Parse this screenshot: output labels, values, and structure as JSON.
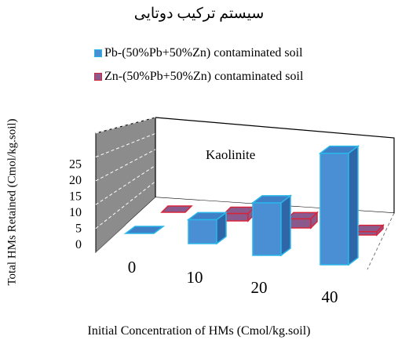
{
  "title": "سیستم ترکیب دوتایی",
  "colors": {
    "pb_fill": "#4a8fd4",
    "pb_top": "#3f7fc6",
    "pb_side": "#2f66a8",
    "pb_edge": "#29b6ea",
    "zn_fill": "#8a5a8c",
    "zn_edge": "#d8243a",
    "back_wall": "#ffffff",
    "side_wall": "#8c8c8c"
  },
  "chart_data": {
    "type": "bar",
    "subtype": "3d-column",
    "title": "سیستم ترکیب دوتایی",
    "annotation": "Kaolinite",
    "categories": [
      "0",
      "10",
      "20",
      "40"
    ],
    "series": [
      {
        "name": "Pb-(50%Pb+50%Zn) contaminated soil",
        "values": [
          0,
          4.2,
          9.2,
          19.5
        ]
      },
      {
        "name": "Zn-(50%Pb+50%Zn) contaminated soil",
        "values": [
          0,
          1.3,
          1.6,
          0.6
        ]
      }
    ],
    "xlabel": "Initial Concentration of  HMs (Cmol/kg.soil)",
    "ylabel": "Total HMs Retained (Cmol/kg.soil)",
    "y_ticks": [
      "0",
      "5",
      "10",
      "15",
      "20",
      "25"
    ],
    "ylim": [
      0,
      25
    ],
    "grid": true,
    "legend_position": "top"
  }
}
